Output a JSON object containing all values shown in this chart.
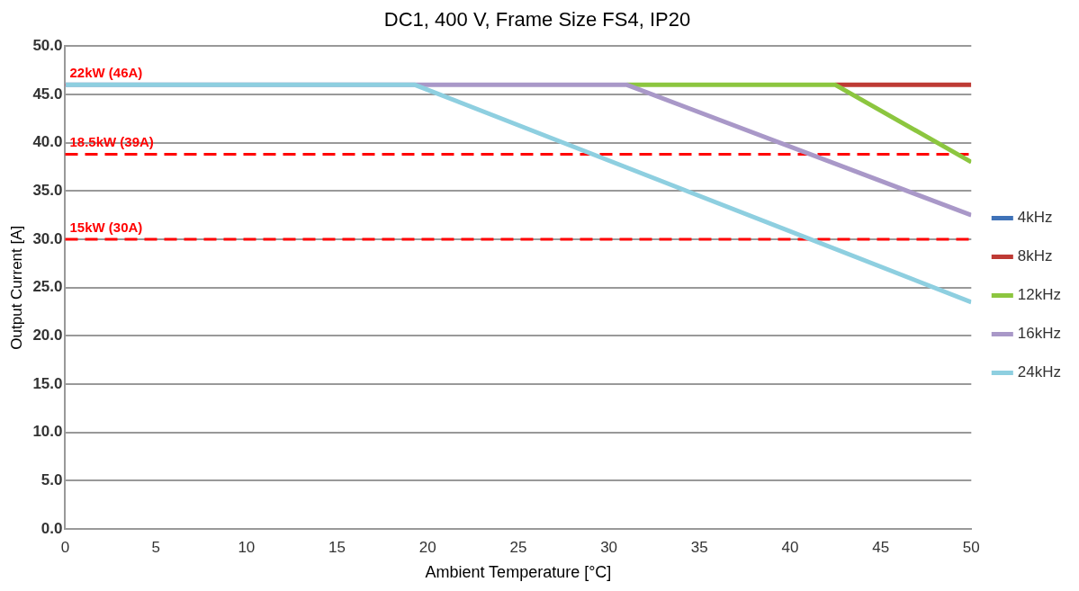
{
  "chart_data": {
    "type": "line",
    "title": "DC1, 400 V, Frame Size FS4, IP20",
    "xlabel": "Ambient Temperature [°C]",
    "ylabel": "Output Current [A]",
    "xlim": [
      0,
      50
    ],
    "xticks": [
      0,
      5,
      10,
      15,
      20,
      25,
      30,
      35,
      40,
      45,
      50
    ],
    "ylim": [
      0,
      50
    ],
    "yticks": [
      {
        "value": 0,
        "label": "0.0"
      },
      {
        "value": 5,
        "label": "5.0"
      },
      {
        "value": 10,
        "label": "10.0"
      },
      {
        "value": 15,
        "label": "15.0"
      },
      {
        "value": 20,
        "label": "20.0"
      },
      {
        "value": 25,
        "label": "25.0"
      },
      {
        "value": 30,
        "label": "30.0"
      },
      {
        "value": 35,
        "label": "35.0"
      },
      {
        "value": 40,
        "label": "40.0"
      },
      {
        "value": 45,
        "label": "45.0"
      },
      {
        "value": 50,
        "label": "50.0"
      }
    ],
    "grid": "y",
    "legend": "right",
    "marker": "none",
    "line_style": "solid",
    "series": [
      {
        "name": "4kHz",
        "color": "#3f72b8"
      },
      {
        "name": "8kHz",
        "color": "#be3a34",
        "x": [
          42.5,
          50
        ],
        "values": [
          46,
          46
        ]
      },
      {
        "name": "12kHz",
        "color": "#8cc63f",
        "x": [
          31,
          42.5,
          50
        ],
        "values": [
          46,
          46,
          38
        ]
      },
      {
        "name": "16kHz",
        "color": "#a998c8",
        "x": [
          0,
          31,
          50
        ],
        "values": [
          46,
          46,
          32.5
        ]
      },
      {
        "name": "24kHz",
        "color": "#8ecfe0",
        "x": [
          0,
          19.3,
          50
        ],
        "values": [
          46,
          46,
          23.5
        ]
      }
    ],
    "ref_lines": [
      {
        "axis": "y",
        "value": 46,
        "label": "22kW (46A)",
        "color": "#ff0000",
        "line_style": "dashed"
      },
      {
        "axis": "y",
        "value": 38.8,
        "label": "18.5kW (39A)",
        "color": "#ff0000",
        "line_style": "dashed"
      },
      {
        "axis": "y",
        "value": 30,
        "label": "15kW (30A)",
        "color": "#ff0000",
        "line_style": "dashed"
      }
    ]
  }
}
